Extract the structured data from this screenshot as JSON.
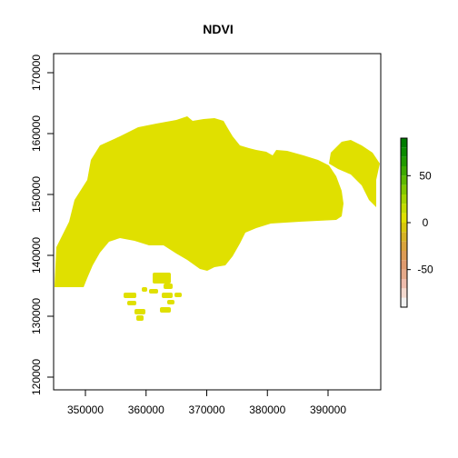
{
  "chart_data": {
    "type": "heatmap",
    "title": "NDVI",
    "xlabel": "",
    "ylabel": "",
    "xlim": [
      344000,
      398500
    ],
    "ylim": [
      117500,
      174000
    ],
    "x_ticks": [
      350000,
      360000,
      370000,
      380000,
      390000
    ],
    "x_tick_labels": [
      "350000",
      "360000",
      "370000",
      "380000",
      "390000"
    ],
    "y_ticks": [
      120000,
      130000,
      140000,
      150000,
      160000,
      170000
    ],
    "y_tick_labels": [
      "120000",
      "130000",
      "140000",
      "150000",
      "160000",
      "170000"
    ],
    "raster_fill_color": "#e0e000",
    "raster_value_approx": 0,
    "legend": {
      "placement": "right",
      "range": [
        -90,
        90
      ],
      "tick_values": [
        50,
        0,
        -50
      ],
      "tick_labels": [
        "50",
        "0",
        "-50"
      ],
      "bins": [
        {
          "from": -90,
          "to": -80,
          "color": "#f2f2f2"
        },
        {
          "from": -80,
          "to": -70,
          "color": "#f3d9cf"
        },
        {
          "from": -70,
          "to": -60,
          "color": "#eebcad"
        },
        {
          "from": -60,
          "to": -50,
          "color": "#e5a98a"
        },
        {
          "from": -50,
          "to": -40,
          "color": "#df9a6e"
        },
        {
          "from": -40,
          "to": -30,
          "color": "#dc9b55"
        },
        {
          "from": -30,
          "to": -20,
          "color": "#d9a43d"
        },
        {
          "from": -20,
          "to": -10,
          "color": "#d6b224"
        },
        {
          "from": -10,
          "to": 0,
          "color": "#d8c70c"
        },
        {
          "from": 0,
          "to": 10,
          "color": "#e0e000"
        },
        {
          "from": 10,
          "to": 20,
          "color": "#c4dc00"
        },
        {
          "from": 20,
          "to": 30,
          "color": "#a4d400"
        },
        {
          "from": 30,
          "to": 40,
          "color": "#82c800"
        },
        {
          "from": 40,
          "to": 50,
          "color": "#5eb900"
        },
        {
          "from": 50,
          "to": 60,
          "color": "#3da900"
        },
        {
          "from": 60,
          "to": 70,
          "color": "#219a00"
        },
        {
          "from": 70,
          "to": 80,
          "color": "#0c8b00"
        },
        {
          "from": 80,
          "to": 90,
          "color": "#007c00"
        }
      ]
    }
  }
}
